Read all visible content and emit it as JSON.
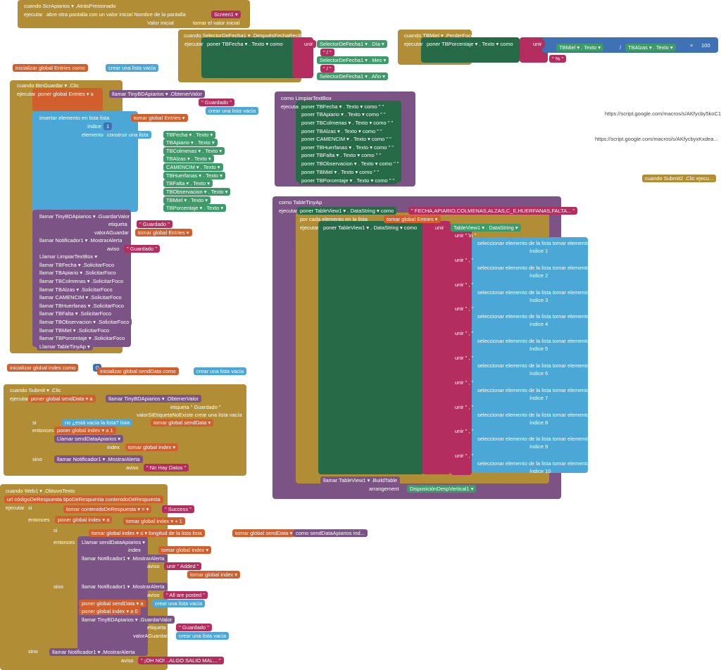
{
  "colors": {
    "event": "#b18e35",
    "variable": "#d05f2d",
    "list": "#4aa7d6",
    "setter": "#266a48",
    "getter": "#3f9a6a",
    "text": "#b32d5e",
    "procedure": "#7c5385",
    "math": "#3f71b5",
    "logic": "#77ab41"
  },
  "lines": [
    "cuando  ScrApiarios ▾  .AtrásPresionado",
    "ejecutar",
    "abre otra pantalla con un valor inicial  Nombre de la pantalla",
    "Screen1 ▾",
    "Valor inicial",
    "tomar el valor inicial",
    "cuando  SelectorDeFecha1 ▾  .DespuésFechaRecibida",
    "ejecutar",
    "poner  TBFecha ▾ . Texto ▾  como",
    "unir",
    "SelectorDeFecha1 ▾ . Día ▾",
    "\" / \"",
    "SelectorDeFecha1 ▾ . Mes ▾",
    "\" / \"",
    "SelectorDeFecha1 ▾ . Año ▾",
    "cuando  TBMiel ▾  .PerderFoco",
    "ejecutar",
    "poner  TBPorcentaje ▾ . Texto ▾  como",
    "unir",
    "TBMiel ▾ . Texto ▾",
    "/",
    "TBAlzas ▾ . Texto ▾",
    "×",
    "100",
    "\" % \"",
    "inicializar global  Entries  como",
    "crear una lista vacía",
    "cuando  BtnGuardar ▾  .Clic",
    "ejecutar",
    "poner  global Entries ▾  a",
    "llamar  TinyBDApiarios ▾  .ObtenerValor",
    "etiqueta",
    "\" Guardado \"",
    "valorSiEtiquetaNoExiste",
    "crear una lista vacía",
    "insertar elemento en lista  lista",
    "tomar  global Entries ▾",
    "índice",
    "1",
    "elemento",
    "construir una lista",
    "TBFecha ▾ . Texto ▾",
    "TBApiario ▾ . Texto ▾",
    "TBColmenas ▾ . Texto ▾",
    "TBAlzas ▾ . Texto ▾",
    "CAMENCIM ▾ . Texto ▾",
    "TBHuerfanas ▾ . Texto ▾",
    "TBFalta ▾ . Texto ▾",
    "TBObservacion ▾ . Texto ▾",
    "TBMiel ▾ . Texto ▾",
    "TBPorcentaje ▾ . Texto ▾",
    "llamar  TinyBDApiarios ▾  .GuardarValor",
    "etiqueta",
    "\" Guardado \"",
    "valorAGuardar",
    "tomar  global Entries ▾",
    "llamar  Notificador1 ▾  .MostrarAlerta",
    "aviso",
    "\" Guardado \"",
    "Llamar  LimpiarTextBox ▾",
    "llamar  TBFecha ▾  .SolicitarFoco",
    "llamar  TBApiario ▾  .SolicitarFoco",
    "llamar  TBColmenas ▾  .SolicitarFoco",
    "llamar  TBAlzas ▾  .SolicitarFoco",
    "llamar  CAMENCIM ▾  .SolicitarFoco",
    "llamar  TBHuerfanas ▾  .SolicitarFoco",
    "llamar  TBFalta ▾  .SolicitarFoco",
    "llamar  TBObservacion ▾  .SolicitarFoco",
    "llamar  TBMiel ▾  .SolicitarFoco",
    "llamar  TBPorcentaje ▾  .SolicitarFoco",
    "Llamar  TableTinyAp ▾",
    "como  LimpiarTextBox",
    "ejecutar",
    "poner  TBFecha ▾ . Texto ▾  como  \" \"",
    "poner  TBApiario ▾ . Texto ▾  como  \" \"",
    "poner  TBColmenas ▾ . Texto ▾  como  \" \"",
    "poner  TBAlzas ▾ . Texto ▾  como  \" \"",
    "poner  CAMENCIM ▾ . Texto ▾  como  \" \"",
    "poner  TBHuerfanas ▾ . Texto ▾  como  \" \"",
    "poner  TBFalta ▾ . Texto ▾  como  \" \"",
    "poner  TBObservacion ▾ . Texto ▾  como  \" \"",
    "poner  TBMiel ▾ . Texto ▾  como  \" \"",
    "poner  TBPorcentaje ▾ . Texto ▾  como  \" \"",
    "https://script.google.com/macros/s/AKfycby5koC1Q...",
    "https://script.google.com/macros/s/AKfycbyxKxdea...",
    "cuando  Submit2 .Clic  ejecu...",
    "como  TableTinyAp",
    "ejecutar",
    "poner  TableView1 ▾ . DataString ▾  como",
    "\" FECHA,APIARIO,COLMENAS,ALZAS,C_E,HUERFANAS,FALTA... \"",
    "por cada  elemento  en la lista",
    "tomar  global Entries ▾",
    "ejecutar",
    "poner  TableView1 ▾ . DataString ▾  como",
    "unir",
    "TableView1 ▾ . DataString ▾",
    "unir  \" \\n \"",
    "seleccionar elemento de la lista   tomar  elemento ▾",
    "índice  1",
    "unir  \" , \"",
    "seleccionar elemento de la lista   tomar  elemento ▾",
    "índice  2",
    "unir  \" , \"",
    "seleccionar elemento de la lista   tomar  elemento ▾",
    "índice  3",
    "unir  \" , \"",
    "seleccionar elemento de la lista   tomar  elemento ▾",
    "índice  4",
    "unir  \" , \"",
    "seleccionar elemento de la lista   tomar  elemento ▾",
    "índice  5",
    "unir  \" , \"",
    "seleccionar elemento de la lista   tomar  elemento ▾",
    "índice  6",
    "unir  \" , \"",
    "seleccionar elemento de la lista   tomar  elemento ▾",
    "índice  7",
    "unir  \" , \"",
    "seleccionar elemento de la lista   tomar  elemento ▾",
    "índice  8",
    "unir  \" , \"",
    "seleccionar elemento de la lista   tomar  elemento ▾",
    "índice  9",
    "unir  \" , \"",
    "seleccionar elemento de la lista   tomar  elemento ▾",
    "índice  10",
    "llamar  TableView1 ▾  .BuildTable",
    "arrangement",
    "DisposiciónDespVertical1 ▾",
    "inicializar global  index  como",
    "0",
    "inicializar global  sendData  como",
    "crear una lista vacía",
    "cuando  Submit ▾  .Clic",
    "ejecutar",
    "poner  global sendData ▾  a",
    "llamar  TinyBDApiarios ▾  .ObtenerValor",
    "etiqueta  \" Guardado \"",
    "valorSiEtiquetaNoExiste   crear una lista vacía",
    "si",
    "no  ¿está vacía la lista?  lista",
    "tomar  global sendData ▾",
    "entonces",
    "poner  global index ▾  a  1",
    "Llamar  sendDataApiarios ▾",
    "index",
    "tomar  global index ▾",
    "sino",
    "llamar  Notificador1 ▾  .MostrarAlerta",
    "aviso",
    "\" No Hay Datos \"",
    "cuando  Web1 ▾  .ObtuvoTexto",
    "url   códigoDeRespuesta   tipoDeRespuesta   contenidoDeRespuesta",
    "ejecutar",
    "si",
    "tomar  contenidoDeRespuesta ▾   = ▾",
    "\" Success \"",
    "entonces",
    "poner  global index ▾  a",
    "tomar  global index ▾   +   1",
    "si",
    "tomar  global index ▾   ≤ ▾   longitud de la lista  lista",
    "tomar  global sendData ▾",
    "entonces",
    "Llamar  sendDataApiarios ▾",
    "index",
    "tomar  global index ▾",
    "llamar  Notificador1 ▾  .MostrarAlerta",
    "aviso",
    "unir  \" Added \"",
    "tomar  global index ▾",
    "sino",
    "llamar  Notificador1 ▾  .MostrarAlerta",
    "aviso",
    "\" All are posted \"",
    "poner  global sendData ▾  a",
    "crear una lista vacía",
    "poner  global index ▾  a  0",
    "llamar  TinyBDApiarios ▾  .GuardarValor",
    "etiqueta",
    "\" Guardado \"",
    "valorAGuardar",
    "crear una lista vacía",
    "sino",
    "llamar  Notificador1 ▾  .MostrarAlerta",
    "aviso",
    "\" ¡OH NO! ..ALGO SALIO MAL... \"",
    "como  sendDataApiarios  ind..."
  ]
}
